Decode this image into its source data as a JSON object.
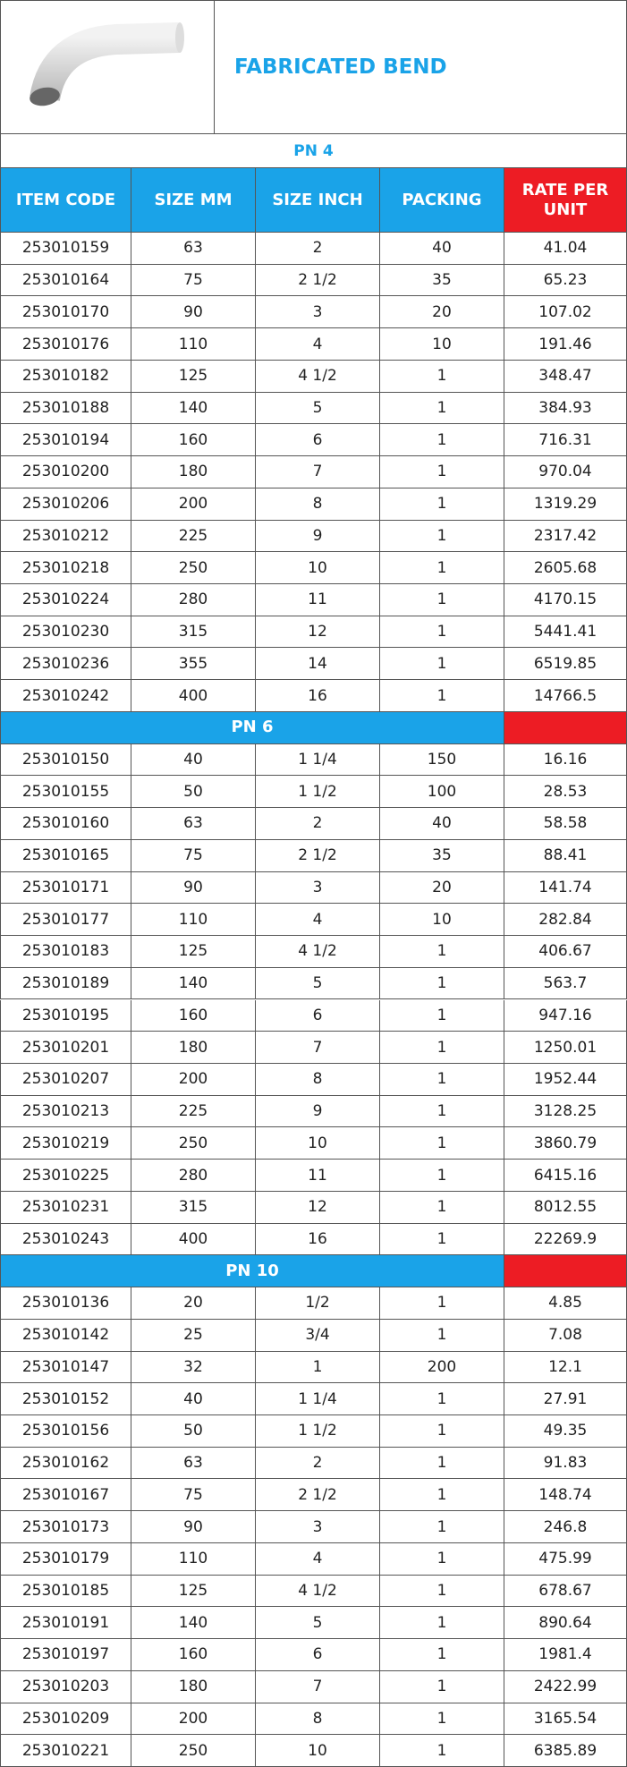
{
  "header": {
    "title": "FABRICATED BEND"
  },
  "columns": [
    "ITEM CODE",
    "SIZE MM",
    "SIZE INCH",
    "PACKING",
    "RATE PER UNIT"
  ],
  "sections": [
    {
      "title": "PN 4",
      "rows": [
        [
          "253010159",
          "63",
          "2",
          "40",
          "41.04"
        ],
        [
          "253010164",
          "75",
          "2 1/2",
          "35",
          "65.23"
        ],
        [
          "253010170",
          "90",
          "3",
          "20",
          "107.02"
        ],
        [
          "253010176",
          "110",
          "4",
          "10",
          "191.46"
        ],
        [
          "253010182",
          "125",
          "4 1/2",
          "1",
          "348.47"
        ],
        [
          "253010188",
          "140",
          "5",
          "1",
          "384.93"
        ],
        [
          "253010194",
          "160",
          "6",
          "1",
          "716.31"
        ],
        [
          "253010200",
          "180",
          "7",
          "1",
          "970.04"
        ],
        [
          "253010206",
          "200",
          "8",
          "1",
          "1319.29"
        ],
        [
          "253010212",
          "225",
          "9",
          "1",
          "2317.42"
        ],
        [
          "253010218",
          "250",
          "10",
          "1",
          "2605.68"
        ],
        [
          "253010224",
          "280",
          "11",
          "1",
          "4170.15"
        ],
        [
          "253010230",
          "315",
          "12",
          "1",
          "5441.41"
        ],
        [
          "253010236",
          "355",
          "14",
          "1",
          "6519.85"
        ],
        [
          "253010242",
          "400",
          "16",
          "1",
          "14766.5"
        ]
      ]
    },
    {
      "title": "PN 6",
      "rows": [
        [
          "253010150",
          "40",
          "1 1/4",
          "150",
          "16.16"
        ],
        [
          "253010155",
          "50",
          "1 1/2",
          "100",
          "28.53"
        ],
        [
          "253010160",
          "63",
          "2",
          "40",
          "58.58"
        ],
        [
          "253010165",
          "75",
          "2 1/2",
          "35",
          "88.41"
        ],
        [
          "253010171",
          "90",
          "3",
          "20",
          "141.74"
        ],
        [
          "253010177",
          "110",
          "4",
          "10",
          "282.84"
        ],
        [
          "253010183",
          "125",
          "4 1/2",
          "1",
          "406.67"
        ],
        [
          "253010189",
          "140",
          "5",
          "1",
          "563.7"
        ],
        [
          "253010195",
          "160",
          "6",
          "1",
          "947.16"
        ],
        [
          "253010201",
          "180",
          "7",
          "1",
          "1250.01"
        ],
        [
          "253010207",
          "200",
          "8",
          "1",
          "1952.44"
        ],
        [
          "253010213",
          "225",
          "9",
          "1",
          "3128.25"
        ],
        [
          "253010219",
          "250",
          "10",
          "1",
          "3860.79"
        ],
        [
          "253010225",
          "280",
          "11",
          "1",
          "6415.16"
        ],
        [
          "253010231",
          "315",
          "12",
          "1",
          "8012.55"
        ],
        [
          "253010243",
          "400",
          "16",
          "1",
          "22269.9"
        ]
      ]
    },
    {
      "title": "PN 10",
      "rows": [
        [
          "253010136",
          "20",
          "1/2",
          "1",
          "4.85"
        ],
        [
          "253010142",
          "25",
          "3/4",
          "1",
          "7.08"
        ],
        [
          "253010147",
          "32",
          "1",
          "200",
          "12.1"
        ],
        [
          "253010152",
          "40",
          "1 1/4",
          "1",
          "27.91"
        ],
        [
          "253010156",
          "50",
          "1 1/2",
          "1",
          "49.35"
        ],
        [
          "253010162",
          "63",
          "2",
          "1",
          "91.83"
        ],
        [
          "253010167",
          "75",
          "2 1/2",
          "1",
          "148.74"
        ],
        [
          "253010173",
          "90",
          "3",
          "1",
          "246.8"
        ],
        [
          "253010179",
          "110",
          "4",
          "1",
          "475.99"
        ],
        [
          "253010185",
          "125",
          "4 1/2",
          "1",
          "678.67"
        ],
        [
          "253010191",
          "140",
          "5",
          "1",
          "890.64"
        ],
        [
          "253010197",
          "160",
          "6",
          "1",
          "1981.4"
        ],
        [
          "253010203",
          "180",
          "7",
          "1",
          "2422.99"
        ],
        [
          "253010209",
          "200",
          "8",
          "1",
          "3165.54"
        ],
        [
          "253010221",
          "250",
          "10",
          "1",
          "6385.89"
        ]
      ]
    }
  ]
}
